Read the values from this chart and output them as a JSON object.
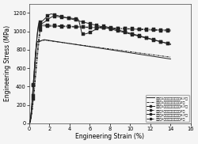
{
  "title": "",
  "xlabel": "Engineering Strain (%)",
  "ylabel": "Engineering Stress (MPa)",
  "xlim": [
    0,
    16
  ],
  "ylim": [
    0,
    1300
  ],
  "xticks": [
    0,
    2,
    4,
    6,
    8,
    10,
    12,
    14,
    16
  ],
  "yticks": [
    0,
    200,
    400,
    600,
    800,
    1000,
    1200
  ],
  "legend_entries": [
    "实施例1垂直于堆积方向（X-Y）",
    "实施例1平行于堆积方向（Z）",
    "对比例1垂直于堆积方向（X-Y）",
    "对比例1平行于堆积方向（Z）",
    "对比例2垂直于堆积方向（X-Y）",
    "对比例2平行于堆积方向（Z）"
  ],
  "bg_color": "#f5f5f5",
  "line_color": "#222222"
}
